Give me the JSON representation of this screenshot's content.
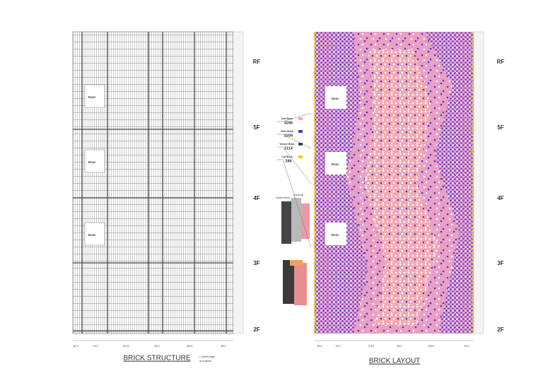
{
  "structure": {
    "title": "BRICK STRUCTURE",
    "notes": [
      "L=Shelf Angle",
      "d=Channel"
    ],
    "doors": [
      "Door",
      "Door",
      "Door"
    ],
    "dims": [
      "50.0",
      "91.3",
      "272.5",
      "50.0",
      "202.5",
      "50.0"
    ]
  },
  "layout": {
    "title": "BRICK LAYOUT",
    "doors": [
      "Door",
      "Door",
      "Door"
    ],
    "dims": [
      "50.0",
      "91.3",
      "272.5",
      "50.0",
      "202.5",
      "50.0"
    ]
  },
  "floors": [
    "RF",
    "5F",
    "4F",
    "3F",
    "2F"
  ],
  "legend": [
    {
      "name": "Soil Brick",
      "count": "4286"
    },
    {
      "name": "Filler Brick",
      "count": "2259"
    },
    {
      "name": "Veneer Brick",
      "count": "2114"
    },
    {
      "name": "Cut Brick",
      "count": "286"
    }
  ],
  "callouts": [
    "Veneer Brick",
    "Cut Brick"
  ]
}
